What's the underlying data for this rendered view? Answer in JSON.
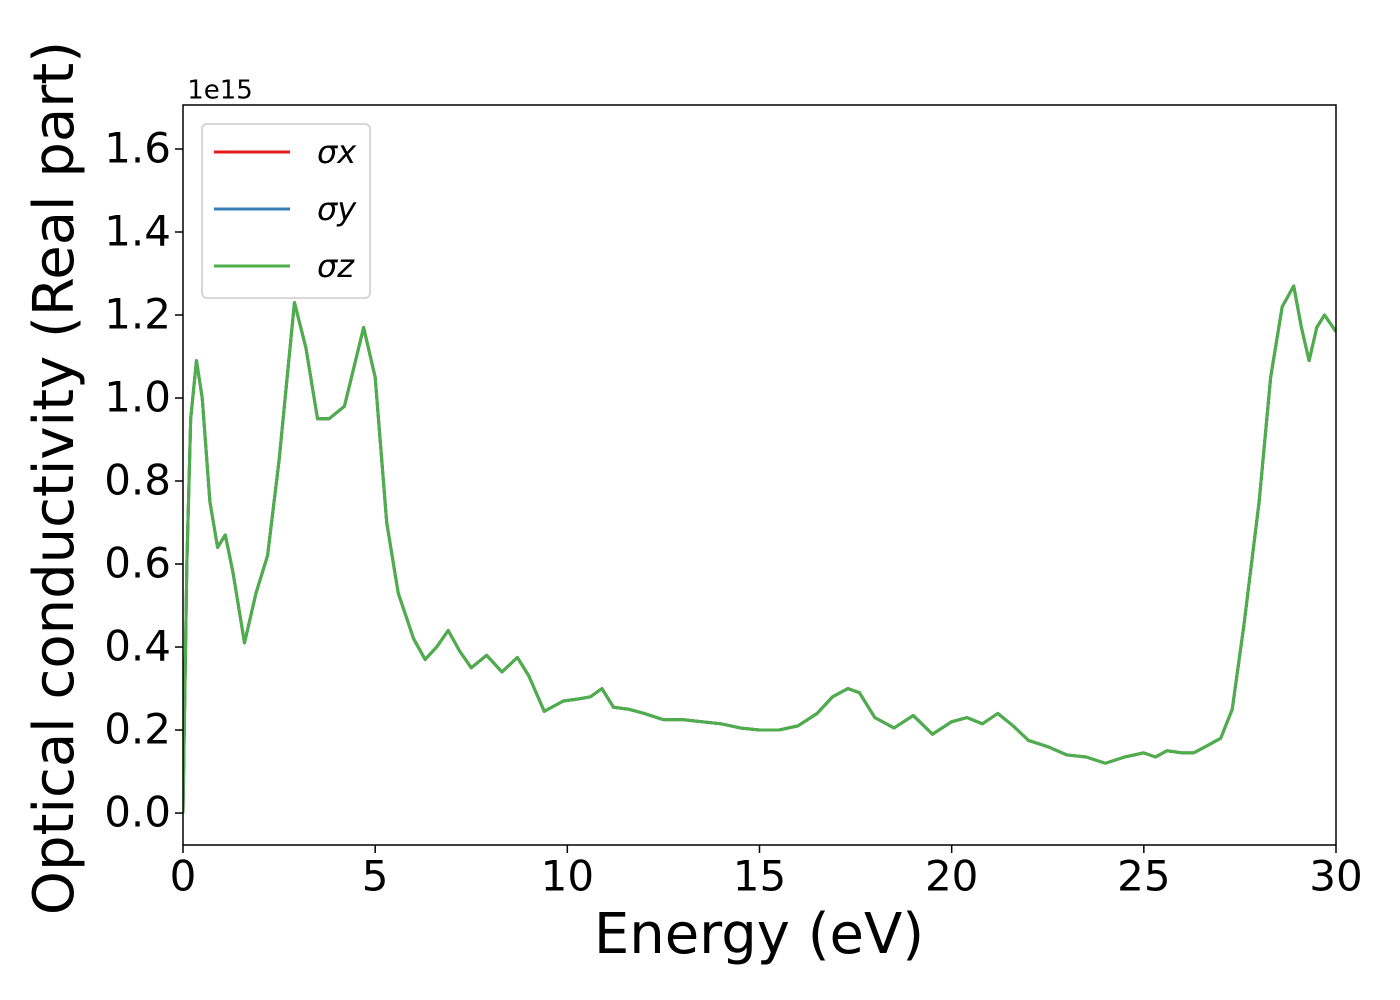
{
  "chart_data": {
    "type": "line",
    "xlabel": "Energy (eV)",
    "ylabel": "Optical conductivity (Real part)",
    "y_offset_label": "1e15",
    "xlim": [
      0,
      30
    ],
    "ylim": [
      -0.077,
      1.706
    ],
    "xticks": [
      0,
      5,
      10,
      15,
      20,
      25,
      30
    ],
    "yticks": [
      {
        "value": 0,
        "label": "0.0"
      },
      0.2,
      0.4,
      0.6,
      0.8,
      {
        "value": 1,
        "label": "1.0"
      },
      1.2,
      1.4,
      1.6
    ],
    "legend": "upper left",
    "grid": false,
    "x": [
      0,
      0.1,
      0.2,
      0.35,
      0.5,
      0.7,
      0.9,
      1.1,
      1.3,
      1.6,
      1.9,
      2.2,
      2.5,
      2.9,
      3.2,
      3.5,
      3.8,
      4.2,
      4.7,
      5.0,
      5.3,
      5.6,
      6.0,
      6.3,
      6.6,
      6.9,
      7.2,
      7.5,
      7.9,
      8.3,
      8.7,
      9.0,
      9.4,
      9.9,
      10.3,
      10.6,
      10.9,
      11.2,
      11.6,
      12.0,
      12.5,
      13.0,
      13.5,
      14.0,
      14.5,
      15.0,
      15.5,
      16.0,
      16.5,
      16.9,
      17.3,
      17.6,
      18.0,
      18.5,
      19.0,
      19.5,
      20.0,
      20.4,
      20.8,
      21.2,
      21.6,
      22.0,
      22.5,
      23.0,
      23.5,
      24.0,
      24.5,
      25.0,
      25.3,
      25.6,
      26.0,
      26.3,
      26.6,
      27.0,
      27.3,
      27.6,
      28.0,
      28.3,
      28.6,
      28.9,
      29.1,
      29.3,
      29.5,
      29.7,
      30.0
    ],
    "series": [
      {
        "name": "σx",
        "color": "#e41a1c",
        "values": [
          0,
          0.6,
          0.95,
          1.09,
          1.0,
          0.75,
          0.64,
          0.67,
          0.58,
          0.41,
          0.53,
          0.62,
          0.85,
          1.23,
          1.12,
          0.95,
          0.95,
          0.98,
          1.17,
          1.05,
          0.7,
          0.53,
          0.42,
          0.37,
          0.4,
          0.44,
          0.39,
          0.35,
          0.38,
          0.34,
          0.375,
          0.33,
          0.245,
          0.27,
          0.275,
          0.28,
          0.3,
          0.255,
          0.25,
          0.24,
          0.225,
          0.225,
          0.22,
          0.215,
          0.205,
          0.2,
          0.2,
          0.21,
          0.24,
          0.28,
          0.3,
          0.29,
          0.23,
          0.205,
          0.235,
          0.19,
          0.22,
          0.23,
          0.215,
          0.24,
          0.21,
          0.175,
          0.16,
          0.14,
          0.135,
          0.12,
          0.135,
          0.145,
          0.135,
          0.15,
          0.145,
          0.145,
          0.16,
          0.18,
          0.25,
          0.45,
          0.75,
          1.05,
          1.22,
          1.27,
          1.17,
          1.09,
          1.17,
          1.2,
          1.16
        ]
      },
      {
        "name": "σy",
        "color": "#377eb8",
        "values": [
          0,
          0.6,
          0.95,
          1.09,
          1.0,
          0.75,
          0.64,
          0.67,
          0.58,
          0.41,
          0.53,
          0.62,
          0.85,
          1.23,
          1.12,
          0.95,
          0.95,
          0.98,
          1.17,
          1.05,
          0.7,
          0.53,
          0.42,
          0.37,
          0.4,
          0.44,
          0.39,
          0.35,
          0.38,
          0.34,
          0.375,
          0.33,
          0.245,
          0.27,
          0.275,
          0.28,
          0.3,
          0.255,
          0.25,
          0.24,
          0.225,
          0.225,
          0.22,
          0.215,
          0.205,
          0.2,
          0.2,
          0.21,
          0.24,
          0.28,
          0.3,
          0.29,
          0.23,
          0.205,
          0.235,
          0.19,
          0.22,
          0.23,
          0.215,
          0.24,
          0.21,
          0.175,
          0.16,
          0.14,
          0.135,
          0.12,
          0.135,
          0.145,
          0.135,
          0.15,
          0.145,
          0.145,
          0.16,
          0.18,
          0.25,
          0.45,
          0.75,
          1.05,
          1.22,
          1.27,
          1.17,
          1.09,
          1.17,
          1.2,
          1.16
        ]
      },
      {
        "name": "σz",
        "color": "#4daf4a",
        "values": [
          0,
          0.6,
          0.95,
          1.09,
          1.0,
          0.75,
          0.64,
          0.67,
          0.58,
          0.41,
          0.53,
          0.62,
          0.85,
          1.23,
          1.12,
          0.95,
          0.95,
          0.98,
          1.17,
          1.05,
          0.7,
          0.53,
          0.42,
          0.37,
          0.4,
          0.44,
          0.39,
          0.35,
          0.38,
          0.34,
          0.375,
          0.33,
          0.245,
          0.27,
          0.275,
          0.28,
          0.3,
          0.255,
          0.25,
          0.24,
          0.225,
          0.225,
          0.22,
          0.215,
          0.205,
          0.2,
          0.2,
          0.21,
          0.24,
          0.28,
          0.3,
          0.29,
          0.23,
          0.205,
          0.235,
          0.19,
          0.22,
          0.23,
          0.215,
          0.24,
          0.21,
          0.175,
          0.16,
          0.14,
          0.135,
          0.12,
          0.135,
          0.145,
          0.135,
          0.15,
          0.145,
          0.145,
          0.16,
          0.18,
          0.25,
          0.45,
          0.75,
          1.05,
          1.22,
          1.27,
          1.17,
          1.09,
          1.17,
          1.2,
          1.16
        ]
      }
    ]
  }
}
